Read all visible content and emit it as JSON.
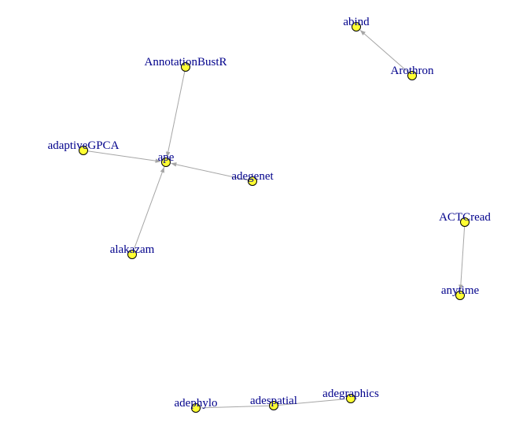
{
  "graph": {
    "node_color": "#ffff33",
    "node_stroke": "#000000",
    "edge_color": "#a6a6a6",
    "label_color": "#00008b",
    "nodes": [
      {
        "id": "abind",
        "label": "abind"
      },
      {
        "id": "Arothron",
        "label": "Arothron"
      },
      {
        "id": "AnnotationBustR",
        "label": "AnnotationBustR"
      },
      {
        "id": "adaptiveGPCA",
        "label": "adaptiveGPCA"
      },
      {
        "id": "ape",
        "label": "ape"
      },
      {
        "id": "adegenet",
        "label": "adegenet"
      },
      {
        "id": "alakazam",
        "label": "alakazam"
      },
      {
        "id": "ACTCread",
        "label": "ACTCread"
      },
      {
        "id": "anytime",
        "label": "anytime"
      },
      {
        "id": "adephylo",
        "label": "adephylo"
      },
      {
        "id": "adespatial",
        "label": "adespatial"
      },
      {
        "id": "adegraphics",
        "label": "adegraphics"
      }
    ],
    "edges": [
      {
        "from": "Arothron",
        "to": "abind",
        "directed": true
      },
      {
        "from": "AnnotationBustR",
        "to": "ape",
        "directed": true
      },
      {
        "from": "adaptiveGPCA",
        "to": "ape",
        "directed": true
      },
      {
        "from": "adegenet",
        "to": "ape",
        "directed": true
      },
      {
        "from": "alakazam",
        "to": "ape",
        "directed": true
      },
      {
        "from": "ACTCread",
        "to": "anytime",
        "directed": true
      },
      {
        "from": "adephylo",
        "to": "adespatial",
        "directed": false
      },
      {
        "from": "adespatial",
        "to": "adegraphics",
        "directed": false
      }
    ]
  }
}
